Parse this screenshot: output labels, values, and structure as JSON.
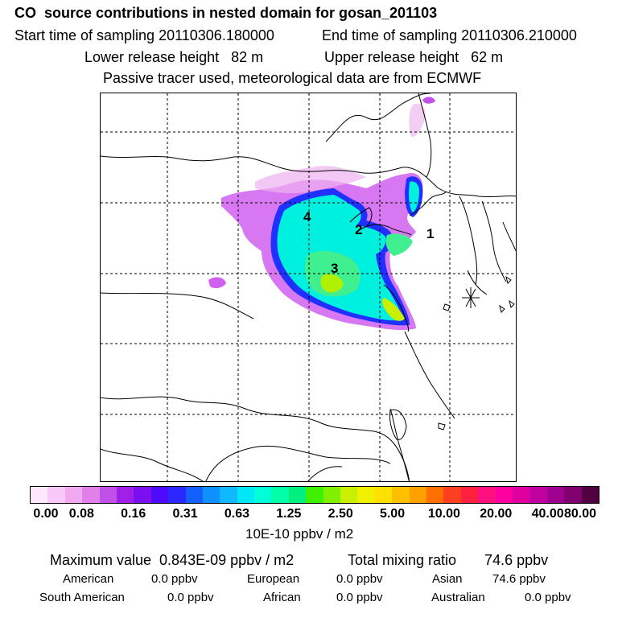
{
  "header": {
    "title": "CO  source contributions in nested domain for gosan_201103",
    "start_time": "Start time of sampling 20110306.180000",
    "end_time": "End time of sampling 20110306.210000",
    "lower_height": "Lower release height   82 m",
    "upper_height": "Upper release height   62 m",
    "tracer_note": "Passive tracer used, meteorological data are from ECMWF"
  },
  "map": {
    "region_labels": [
      "1",
      "2",
      "3",
      "4"
    ],
    "gridlines": "dashed"
  },
  "colorbar": {
    "colors": [
      "#fde8fd",
      "#f8c8f8",
      "#f0a8f0",
      "#e080e8",
      "#c050e8",
      "#a020e8",
      "#7a10f0",
      "#4d0aff",
      "#2828ff",
      "#1460ff",
      "#1090ff",
      "#10b8ff",
      "#00e8f8",
      "#00ffd8",
      "#00ffa8",
      "#00f080",
      "#40f000",
      "#80f000",
      "#c8f000",
      "#f0f000",
      "#ffe000",
      "#ffc000",
      "#ffa000",
      "#ff7000",
      "#ff4020",
      "#ff2040",
      "#ff1080",
      "#ff00a0",
      "#e000a0",
      "#c000a0",
      "#a00090",
      "#800070",
      "#500040"
    ],
    "tick_labels": [
      "0.00",
      "0.08",
      "0.16",
      "0.31",
      "0.63",
      "1.25",
      "2.50",
      "5.00",
      "10.00",
      "20.00",
      "40.00",
      "80.00"
    ],
    "units": "10E-10 ppbv / m2"
  },
  "stats": {
    "max_value": "Maximum value  0.843E-09 ppbv / m2",
    "total_mixing": "Total mixing ratio       74.6 ppbv",
    "american_label": "American",
    "american_value": "0.0 ppbv",
    "european_label": "European",
    "european_value": "0.0 ppbv",
    "asian_label": "Asian",
    "asian_value": "74.6 ppbv",
    "south_american_label": "South American",
    "south_american_value": "0.0 ppbv",
    "african_label": "African",
    "african_value": "0.0 ppbv",
    "australian_label": "Australian",
    "australian_value": "0.0 ppbv"
  }
}
